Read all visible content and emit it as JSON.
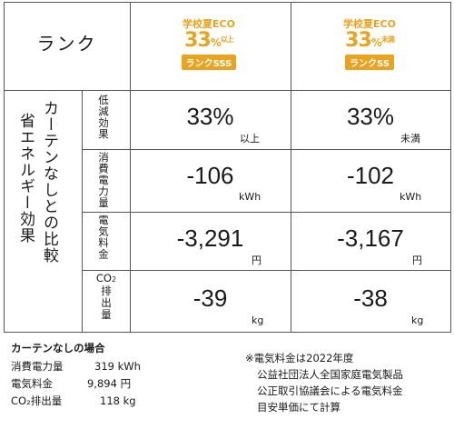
{
  "header": {
    "rank_label": "ランク",
    "columns": [
      {
        "line1": "学校夏ECO",
        "percent": "33",
        "pct_sign": "%",
        "suffix": "以上",
        "badge": "ランクSSS"
      },
      {
        "line1": "学校夏ECO",
        "percent": "33",
        "pct_sign": "%",
        "suffix": "未満",
        "badge": "ランクSS"
      }
    ]
  },
  "side_label": "カーテンなしとの比較省エネルギー効果",
  "side_label_col1": "省エネルギー効果",
  "side_label_col2": "カーテンなしとの比較",
  "rows": [
    {
      "label": "低減効果",
      "values": [
        "33%",
        "33%"
      ],
      "units": [
        "以上",
        "未満"
      ]
    },
    {
      "label": "消費電力量",
      "values": [
        "-106",
        "-102"
      ],
      "units": [
        "kWh",
        "kWh"
      ]
    },
    {
      "label": "電気料金",
      "values": [
        "-3,291",
        "-3,167"
      ],
      "units": [
        "円",
        "円"
      ]
    },
    {
      "label": "CO₂排出量",
      "values": [
        "-39",
        "-38"
      ],
      "units": [
        "kg",
        "kg"
      ]
    }
  ],
  "baseline": {
    "title": "カーテンなしの場合",
    "items": [
      {
        "label": "消費電力量",
        "value": "319 kWh"
      },
      {
        "label": "電気料金",
        "value": "9,894 円"
      },
      {
        "label": "CO₂排出量",
        "value": "118 kg"
      }
    ]
  },
  "footnote": {
    "line1": "※電気料金は2022年度",
    "line2": "公益社団法人全国家庭電気製品",
    "line3": "公正取引協議会による電気料金",
    "line4": "目安単価にて計算"
  },
  "colors": {
    "accent": "#e8a320",
    "grid": "#555555"
  }
}
